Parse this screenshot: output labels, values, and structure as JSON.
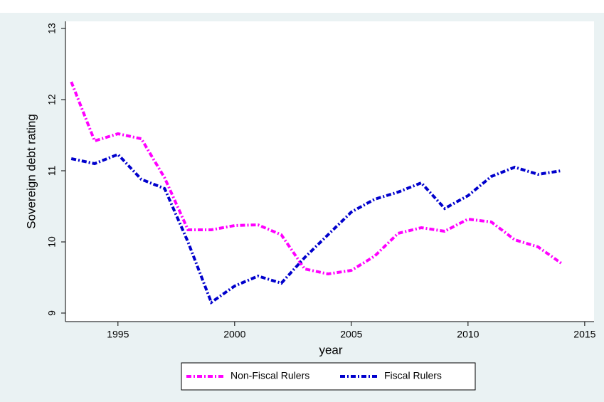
{
  "chart_data": {
    "type": "line",
    "x_label": "year",
    "y_label": "Sovereign debt rating",
    "x": [
      1993,
      1994,
      1995,
      1996,
      1997,
      1998,
      1999,
      2000,
      2001,
      2002,
      2003,
      2004,
      2005,
      2006,
      2007,
      2008,
      2009,
      2010,
      2011,
      2012,
      2013,
      2014
    ],
    "series": [
      {
        "name": "Non-Fiscal Rulers",
        "color": "#ff00ff",
        "values": [
          12.25,
          11.42,
          11.52,
          11.45,
          10.9,
          10.17,
          10.17,
          10.23,
          10.24,
          10.1,
          9.62,
          9.55,
          9.6,
          9.8,
          10.12,
          10.2,
          10.15,
          10.32,
          10.28,
          10.03,
          9.93,
          9.7
        ]
      },
      {
        "name": "Fiscal Rulers",
        "color": "#0000cc",
        "values": [
          11.17,
          11.1,
          11.23,
          10.88,
          10.75,
          10.0,
          9.15,
          9.38,
          9.52,
          9.42,
          9.78,
          10.1,
          10.42,
          10.6,
          10.7,
          10.83,
          10.47,
          10.65,
          10.92,
          11.05,
          10.95,
          11.0
        ]
      }
    ],
    "xlim": [
      1992.75,
      2015.4
    ],
    "xticks": [
      1995,
      2000,
      2005,
      2010,
      2015
    ],
    "ylim": [
      8.88,
      13.1
    ],
    "yticks": [
      9,
      10,
      11,
      12,
      13
    ],
    "legend": "bottom"
  }
}
